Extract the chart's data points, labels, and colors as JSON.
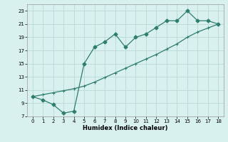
{
  "xlabel": "Humidex (Indice chaleur)",
  "line1_x": [
    0,
    1,
    2,
    3,
    4,
    5,
    6,
    7,
    8,
    9,
    10,
    11,
    12,
    13,
    14,
    15,
    16,
    17,
    18
  ],
  "line1_y": [
    10.0,
    9.5,
    8.8,
    7.5,
    7.8,
    15.0,
    17.5,
    18.3,
    19.5,
    17.5,
    19.0,
    19.5,
    20.5,
    21.5,
    21.5,
    23.0,
    21.5,
    21.5,
    21.0
  ],
  "line2_x": [
    0,
    1,
    2,
    3,
    4,
    5,
    6,
    7,
    8,
    9,
    10,
    11,
    12,
    13,
    14,
    15,
    16,
    17,
    18
  ],
  "line2_y": [
    10.0,
    10.3,
    10.6,
    10.9,
    11.2,
    11.6,
    12.2,
    12.9,
    13.6,
    14.3,
    15.0,
    15.7,
    16.4,
    17.2,
    18.0,
    19.0,
    19.8,
    20.4,
    21.0
  ],
  "line_color": "#2e7d6e",
  "bg_color": "#d8f0ee",
  "grid_color": "#b8d8d4",
  "xlim": [
    -0.5,
    18.5
  ],
  "ylim": [
    7,
    24
  ],
  "xticks": [
    0,
    1,
    2,
    3,
    4,
    5,
    6,
    7,
    8,
    9,
    10,
    11,
    12,
    13,
    14,
    15,
    16,
    17,
    18
  ],
  "yticks": [
    7,
    9,
    11,
    13,
    15,
    17,
    19,
    21,
    23
  ],
  "marker": "D",
  "marker2": "+",
  "markersize": 2.5,
  "markersize2": 3.0,
  "linewidth": 0.9
}
